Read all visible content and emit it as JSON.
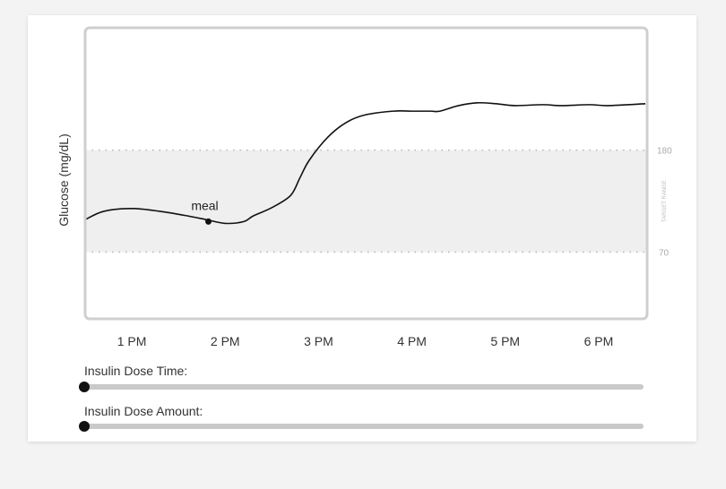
{
  "chart_data": {
    "type": "line",
    "ylabel": "Glucose (mg/dL)",
    "x_ticks": [
      "1 PM",
      "2 PM",
      "3 PM",
      "4 PM",
      "5 PM",
      "6 PM"
    ],
    "x_tick_hours": [
      13,
      14,
      15,
      16,
      17,
      18
    ],
    "xlim": [
      12.5,
      18.5
    ],
    "ylim": [
      0,
      310
    ],
    "target_range": {
      "low": 70,
      "high": 180,
      "low_label": "70",
      "high_label": "180",
      "label": "TARGET RANGE"
    },
    "series": [
      {
        "name": "glucose",
        "x": [
          12.5,
          12.7,
          13.0,
          13.3,
          13.6,
          13.8,
          14.0,
          14.2,
          14.3,
          14.5,
          14.7,
          14.8,
          14.9,
          15.1,
          15.3,
          15.5,
          15.8,
          16.0,
          16.2,
          16.3,
          16.5,
          16.7,
          16.9,
          17.1,
          17.4,
          17.6,
          17.9,
          18.1,
          18.5
        ],
        "y": [
          105,
          114,
          117,
          114,
          109,
          105,
          101,
          103,
          109,
          118,
          131,
          150,
          169,
          194,
          210,
          218,
          222,
          222,
          222,
          222,
          228,
          231,
          230,
          228,
          229,
          228,
          229,
          228,
          230
        ]
      }
    ],
    "annotations": [
      {
        "text": "meal",
        "x": 13.82,
        "y": 103
      }
    ]
  },
  "controls": {
    "dose_time_label": "Insulin Dose Time:",
    "dose_amount_label": "Insulin Dose Amount:",
    "dose_time_value": 0,
    "dose_amount_value": 0
  }
}
